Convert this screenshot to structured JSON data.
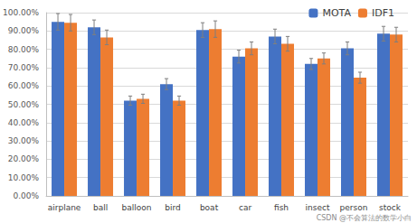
{
  "chart_data": {
    "type": "bar",
    "categories": [
      "airplane",
      "ball",
      "balloon",
      "bird",
      "boat",
      "car",
      "fish",
      "insect",
      "person",
      "stock"
    ],
    "series": [
      {
        "name": "MOTA",
        "color": "#4472c4",
        "values": [
          95,
          92,
          52,
          61,
          90.5,
          76,
          87,
          72,
          80.5,
          88.5
        ],
        "errors": [
          4.5,
          4,
          2.5,
          3,
          4,
          3.5,
          4,
          3,
          3.5,
          4
        ]
      },
      {
        "name": "IDF1",
        "color": "#ed7d31",
        "values": [
          94.5,
          86.5,
          53,
          52,
          91,
          80.5,
          83,
          75,
          64.5,
          88
        ],
        "errors": [
          4.5,
          4,
          2.5,
          2.5,
          4.5,
          3.5,
          4,
          3,
          3,
          4
        ]
      }
    ],
    "ylim": [
      0,
      100
    ],
    "yticks": [
      {
        "value": 0,
        "label": "0.00%"
      },
      {
        "value": 10,
        "label": "10.00%"
      },
      {
        "value": 20,
        "label": "20.00%"
      },
      {
        "value": 30,
        "label": "30.00%"
      },
      {
        "value": 40,
        "label": "40.00%"
      },
      {
        "value": 50,
        "label": "50.00%"
      },
      {
        "value": 60,
        "label": "60.00%"
      },
      {
        "value": 70,
        "label": "70.00%"
      },
      {
        "value": 80,
        "label": "80.00%"
      },
      {
        "value": 90,
        "label": "90.00%"
      },
      {
        "value": 100,
        "label": "100.00%"
      }
    ],
    "grid": true,
    "legend": "upper right",
    "annotations": [
      "CSDN @不会算法的数学小白"
    ]
  }
}
